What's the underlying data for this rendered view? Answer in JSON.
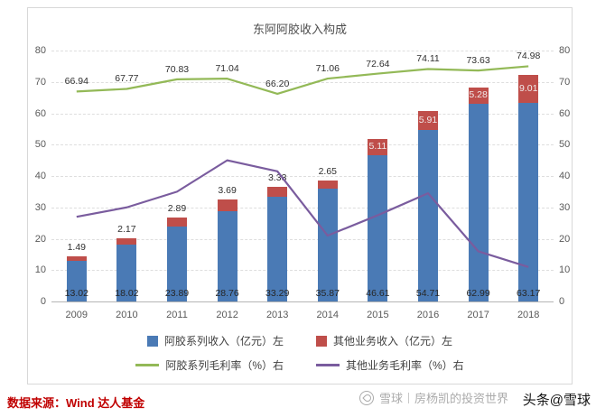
{
  "page": {
    "source_note": "数据来源：Wind  达人基金",
    "stamp": "头条@雪球",
    "watermark": {
      "brand": "雪球",
      "account": "房杨凯的投资世界"
    }
  },
  "chart_data": {
    "type": "bar+line",
    "title": "东阿阿胶收入构成",
    "categories": [
      "2009",
      "2010",
      "2011",
      "2012",
      "2013",
      "2014",
      "2015",
      "2016",
      "2017",
      "2018"
    ],
    "left_axis": {
      "min": 0,
      "max": 80,
      "step": 10
    },
    "right_axis": {
      "min": 0,
      "max": 80,
      "step": 10
    },
    "grid": true,
    "legend_position": "bottom",
    "series": [
      {
        "name": "阿胶系列收入（亿元）左",
        "type": "bar",
        "stack": "revenue",
        "color": "#4a7ab5",
        "values": [
          13.02,
          18.02,
          23.89,
          28.76,
          33.29,
          35.87,
          46.61,
          54.71,
          62.99,
          63.17
        ],
        "labels": [
          "13.02",
          "18.02",
          "23.89",
          "28.76",
          "33.29",
          "35.87",
          "46.61",
          "54.71",
          "62.99",
          "63.17"
        ],
        "label_position": "inside-bottom"
      },
      {
        "name": "其他业务收入（亿元）左",
        "type": "bar",
        "stack": "revenue",
        "color": "#bf4e4a",
        "values": [
          1.49,
          2.17,
          2.89,
          3.69,
          3.33,
          2.65,
          5.11,
          5.91,
          5.28,
          9.01
        ],
        "labels": [
          "1.49",
          "2.17",
          "2.89",
          "3.69",
          "3.33",
          "2.65",
          "5.11",
          "5.91",
          "5.28",
          "9.01"
        ],
        "label_position": "above-stack-then-inside"
      },
      {
        "name": "阿胶系列毛利率（%）右",
        "type": "line",
        "axis": "right",
        "color": "#93b957",
        "values": [
          66.94,
          67.77,
          70.83,
          71.04,
          66.2,
          71.06,
          72.64,
          74.11,
          73.63,
          74.98
        ],
        "labels": [
          "66.94",
          "67.77",
          "70.83",
          "71.04",
          "66.20",
          "71.06",
          "72.64",
          "74.11",
          "73.63",
          "74.98"
        ]
      },
      {
        "name": "其他业务毛利率（%）右",
        "type": "line",
        "axis": "right",
        "color": "#7a5c9e",
        "values": [
          27,
          30,
          35,
          45,
          41.5,
          21,
          27.5,
          34.5,
          16,
          11
        ]
      }
    ]
  }
}
